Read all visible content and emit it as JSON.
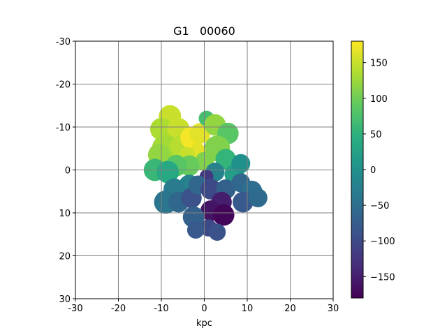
{
  "chart_data": {
    "type": "heatmap",
    "title": "G1   00060",
    "xlabel": "kpc",
    "ylabel": "",
    "xlim": [
      -30,
      30
    ],
    "ylim": [
      -30,
      30
    ],
    "y_inverted": true,
    "grid": true,
    "x_ticks": [
      "-30",
      "-20",
      "-10",
      "0",
      "10",
      "20",
      "30"
    ],
    "y_ticks": [
      "-30",
      "-20",
      "-10",
      "0",
      "10",
      "20",
      "30"
    ],
    "colorbar": {
      "colormap": "viridis",
      "range": [
        -180,
        180
      ],
      "ticks": [
        "150",
        "100",
        "50",
        "0",
        "−50",
        "−100",
        "−150"
      ]
    },
    "blobs": [
      {
        "x": -8,
        "y": -12.5,
        "r": 2.6,
        "v": 150
      },
      {
        "x": -10,
        "y": -9.5,
        "r": 2.6,
        "v": 135
      },
      {
        "x": -6,
        "y": -9.5,
        "r": 2.6,
        "v": 150
      },
      {
        "x": -9,
        "y": -5,
        "r": 3.2,
        "v": 130
      },
      {
        "x": -10.5,
        "y": -3.5,
        "r": 2.6,
        "v": 120
      },
      {
        "x": -5.5,
        "y": -5.5,
        "r": 2.5,
        "v": 140
      },
      {
        "x": -3,
        "y": -7.5,
        "r": 2.6,
        "v": 175
      },
      {
        "x": -1,
        "y": -8.5,
        "r": 2.4,
        "v": 165
      },
      {
        "x": 0.5,
        "y": -12,
        "r": 1.8,
        "v": 70
      },
      {
        "x": 2.5,
        "y": -10.5,
        "r": 2.5,
        "v": 120
      },
      {
        "x": 5.5,
        "y": -8.5,
        "r": 2.5,
        "v": 85
      },
      {
        "x": 3,
        "y": -5,
        "r": 3.0,
        "v": 110
      },
      {
        "x": -1.5,
        "y": -4.5,
        "r": 1.8,
        "v": 165
      },
      {
        "x": -4,
        "y": -3.5,
        "r": 1.8,
        "v": 150
      },
      {
        "x": 0,
        "y": -2,
        "r": 2.2,
        "v": 110
      },
      {
        "x": -3.5,
        "y": -1,
        "r": 2.4,
        "v": 95
      },
      {
        "x": -6.5,
        "y": -1,
        "r": 2.5,
        "v": 85
      },
      {
        "x": -11.5,
        "y": 0,
        "r": 2.6,
        "v": 60
      },
      {
        "x": -8.5,
        "y": 0.5,
        "r": 2.6,
        "v": 35
      },
      {
        "x": 5,
        "y": -2.5,
        "r": 2.4,
        "v": 55
      },
      {
        "x": 7,
        "y": 1,
        "r": 2.3,
        "v": 20
      },
      {
        "x": 8.5,
        "y": -1.5,
        "r": 2.2,
        "v": 0
      },
      {
        "x": 2.5,
        "y": 0.5,
        "r": 2.2,
        "v": -20
      },
      {
        "x": 0.5,
        "y": 1.5,
        "r": 1.6,
        "v": -120
      },
      {
        "x": -3.5,
        "y": 3.5,
        "r": 2.4,
        "v": -20
      },
      {
        "x": -7,
        "y": 4.5,
        "r": 2.5,
        "v": -30
      },
      {
        "x": -9,
        "y": 7.5,
        "r": 2.7,
        "v": -40
      },
      {
        "x": -6,
        "y": 7.5,
        "r": 2.4,
        "v": -60
      },
      {
        "x": -3,
        "y": 6.5,
        "r": 2.4,
        "v": -90
      },
      {
        "x": -1.5,
        "y": 3.5,
        "r": 2.2,
        "v": -60
      },
      {
        "x": 1.5,
        "y": 4.5,
        "r": 2.4,
        "v": -100
      },
      {
        "x": 5,
        "y": 4.5,
        "r": 2.3,
        "v": -70
      },
      {
        "x": 4,
        "y": 7.5,
        "r": 2.4,
        "v": -150
      },
      {
        "x": 1.5,
        "y": 9.5,
        "r": 2.4,
        "v": -160
      },
      {
        "x": 4.5,
        "y": 10.5,
        "r": 2.5,
        "v": -175
      },
      {
        "x": 1,
        "y": 13.5,
        "r": 2.0,
        "v": -100
      },
      {
        "x": 3,
        "y": 14.5,
        "r": 2.0,
        "v": -90
      },
      {
        "x": -2.5,
        "y": 11,
        "r": 2.5,
        "v": -70
      },
      {
        "x": -2,
        "y": 14,
        "r": 2.0,
        "v": -80
      },
      {
        "x": 8.5,
        "y": 3,
        "r": 2.2,
        "v": -60
      },
      {
        "x": 11,
        "y": 5,
        "r": 2.5,
        "v": -50
      },
      {
        "x": 9,
        "y": 7.5,
        "r": 2.4,
        "v": -80
      },
      {
        "x": 12.5,
        "y": 6.5,
        "r": 2.2,
        "v": -55
      }
    ]
  }
}
